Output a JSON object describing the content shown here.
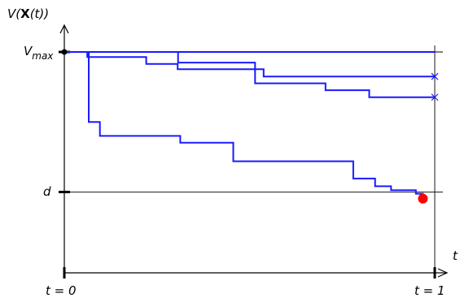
{
  "chart_data": {
    "type": "line",
    "step": true,
    "xlim": [
      0,
      1
    ],
    "ylim": [
      0,
      1
    ],
    "y_axis_label": {
      "prefix": "V(",
      "bold": "X",
      "suffix": "(t))"
    },
    "x_axis_label": "t",
    "y_ticks": [
      {
        "label_base": "V",
        "label_sub": "max",
        "value": 1.0
      },
      {
        "label_base": "d",
        "label_sub": "",
        "value": 0.366
      }
    ],
    "x_ticks": [
      {
        "label": "t = 0",
        "value": 0.0
      },
      {
        "label": "t = 1",
        "value": 1.0
      }
    ],
    "reference_lines": [
      {
        "orientation": "horizontal",
        "value": 1.0
      },
      {
        "orientation": "horizontal",
        "value": 0.366
      },
      {
        "orientation": "vertical",
        "value": 1.0
      }
    ],
    "colors": {
      "series": "#1a1aff",
      "axis": "#000000",
      "terminal_point": "#ff0000",
      "start_point": "#000000"
    },
    "series": [
      {
        "x": [
          0.0,
          0.457,
          0.457,
          1.0
        ],
        "y": [
          1.0,
          1.0,
          1.0,
          1.0
        ]
      },
      {
        "x": [
          0.0,
          0.062,
          0.062,
          0.221,
          0.221,
          0.306,
          0.306,
          0.538,
          0.538,
          1.0
        ],
        "y": [
          1.0,
          1.0,
          0.977,
          0.977,
          0.946,
          0.946,
          0.922,
          0.922,
          0.889,
          0.889
        ]
      },
      {
        "x": [
          0.0,
          0.307,
          0.307,
          0.515,
          0.515,
          0.705,
          0.705,
          0.823,
          0.823,
          1.0
        ],
        "y": [
          1.0,
          1.0,
          0.952,
          0.952,
          0.858,
          0.858,
          0.827,
          0.827,
          0.795,
          0.795
        ]
      },
      {
        "x": [
          0.0,
          0.066,
          0.066,
          0.096,
          0.096,
          0.313,
          0.313,
          0.456,
          0.456,
          0.78,
          0.78,
          0.839,
          0.839,
          0.882,
          0.882,
          0.949,
          0.949,
          0.968,
          0.968
        ],
        "y": [
          1.0,
          1.0,
          0.683,
          0.683,
          0.62,
          0.62,
          0.589,
          0.589,
          0.505,
          0.505,
          0.427,
          0.427,
          0.392,
          0.392,
          0.374,
          0.374,
          0.358,
          0.358,
          0.336
        ]
      }
    ],
    "end_markers": [
      {
        "shape": "cross",
        "x": 1.0,
        "y": 0.889
      },
      {
        "shape": "cross",
        "x": 1.0,
        "y": 0.795
      }
    ],
    "terminal_point": {
      "x": 0.968,
      "y": 0.336
    },
    "start_point": {
      "x": 0.0,
      "y": 1.0
    }
  }
}
